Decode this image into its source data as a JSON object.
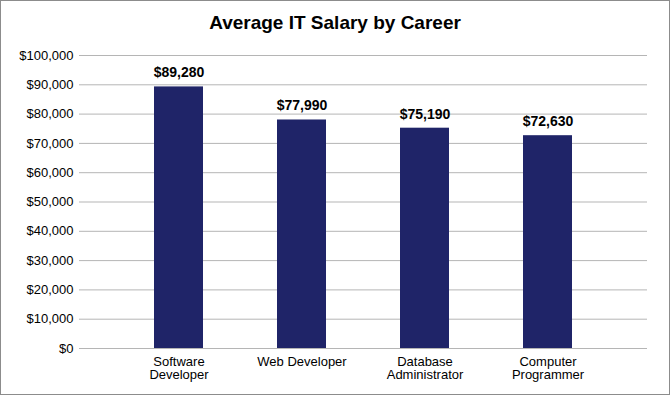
{
  "chart_data": {
    "type": "bar",
    "title": "Average IT Salary by Career",
    "categories": [
      "Software Developer",
      "Web Developer",
      "Database Administrator",
      "Computer Programmer"
    ],
    "values": [
      89280,
      77990,
      75190,
      72630
    ],
    "value_labels": [
      "$89,280",
      "$77,990",
      "$75,190",
      "$72,630"
    ],
    "color": "#1f2468",
    "ylim": [
      0,
      100000
    ],
    "yticks": [
      {
        "value": 0,
        "label": "$0"
      },
      {
        "value": 10000,
        "label": "$10,000"
      },
      {
        "value": 20000,
        "label": "$20,000"
      },
      {
        "value": 30000,
        "label": "$30,000"
      },
      {
        "value": 40000,
        "label": "$40,000"
      },
      {
        "value": 50000,
        "label": "$50,000"
      },
      {
        "value": 60000,
        "label": "$60,000"
      },
      {
        "value": 70000,
        "label": "$70,000"
      },
      {
        "value": 80000,
        "label": "$80,000"
      },
      {
        "value": 90000,
        "label": "$90,000"
      },
      {
        "value": 100000,
        "label": "$100,000"
      }
    ],
    "grid": true,
    "data_labels": true
  }
}
